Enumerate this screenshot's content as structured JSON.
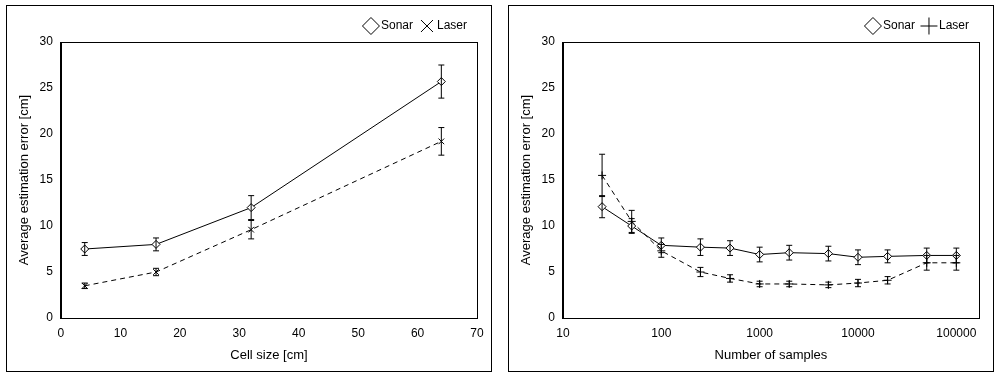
{
  "chart_data": [
    {
      "type": "line",
      "x_label": "Cell size [cm]",
      "y_label": "Average estimation error [cm]",
      "x": [
        4,
        16,
        32,
        64
      ],
      "xlim": [
        0,
        70
      ],
      "xticks": [
        0,
        10,
        20,
        30,
        40,
        50,
        60,
        70
      ],
      "ylim": [
        0,
        30
      ],
      "yticks": [
        0,
        5,
        10,
        15,
        20,
        25,
        30
      ],
      "grid": false,
      "legend": "upper right",
      "series": [
        {
          "name": "Sonar",
          "color": "#000000",
          "marker": "diamond",
          "line_style": "solid",
          "values": [
            7.5,
            8.0,
            12.0,
            25.7
          ],
          "error": [
            0.7,
            0.7,
            1.3,
            1.8
          ]
        },
        {
          "name": "Laser",
          "color": "#000000",
          "marker": "x",
          "line_style": "dashed",
          "values": [
            3.5,
            5.0,
            9.6,
            19.2
          ],
          "error": [
            0.3,
            0.4,
            1.0,
            1.5
          ]
        }
      ]
    },
    {
      "type": "line",
      "x_label": "Number of samples",
      "y_label": "Average estimation error [cm]",
      "x": [
        25,
        50,
        100,
        250,
        500,
        1000,
        2000,
        5000,
        10000,
        20000,
        50000,
        100000
      ],
      "xlim": [
        10,
        170000
      ],
      "xticks": [
        10,
        100,
        1000,
        10000,
        100000
      ],
      "ylim": [
        0,
        30
      ],
      "yticks": [
        0,
        5,
        10,
        15,
        20,
        25,
        30
      ],
      "log": "x",
      "grid": false,
      "legend": "upper right",
      "series": [
        {
          "name": "Sonar",
          "color": "#000000",
          "marker": "diamond",
          "line_style": "solid",
          "values": [
            12.1,
            10.0,
            7.9,
            7.7,
            7.6,
            6.9,
            7.1,
            7.0,
            6.6,
            6.7,
            6.8,
            6.8
          ],
          "error": [
            1.2,
            0.8,
            0.8,
            0.9,
            0.8,
            0.8,
            0.8,
            0.8,
            0.8,
            0.7,
            0.8,
            0.8
          ]
        },
        {
          "name": "Laser",
          "color": "#000000",
          "marker": "plus",
          "line_style": "dashed",
          "values": [
            15.5,
            10.5,
            7.3,
            5.0,
            4.3,
            3.7,
            3.7,
            3.6,
            3.8,
            4.1,
            6.0,
            6.0
          ],
          "error": [
            2.3,
            1.2,
            0.7,
            0.5,
            0.4,
            0.3,
            0.3,
            0.3,
            0.4,
            0.4,
            0.8,
            0.8
          ]
        }
      ]
    }
  ]
}
